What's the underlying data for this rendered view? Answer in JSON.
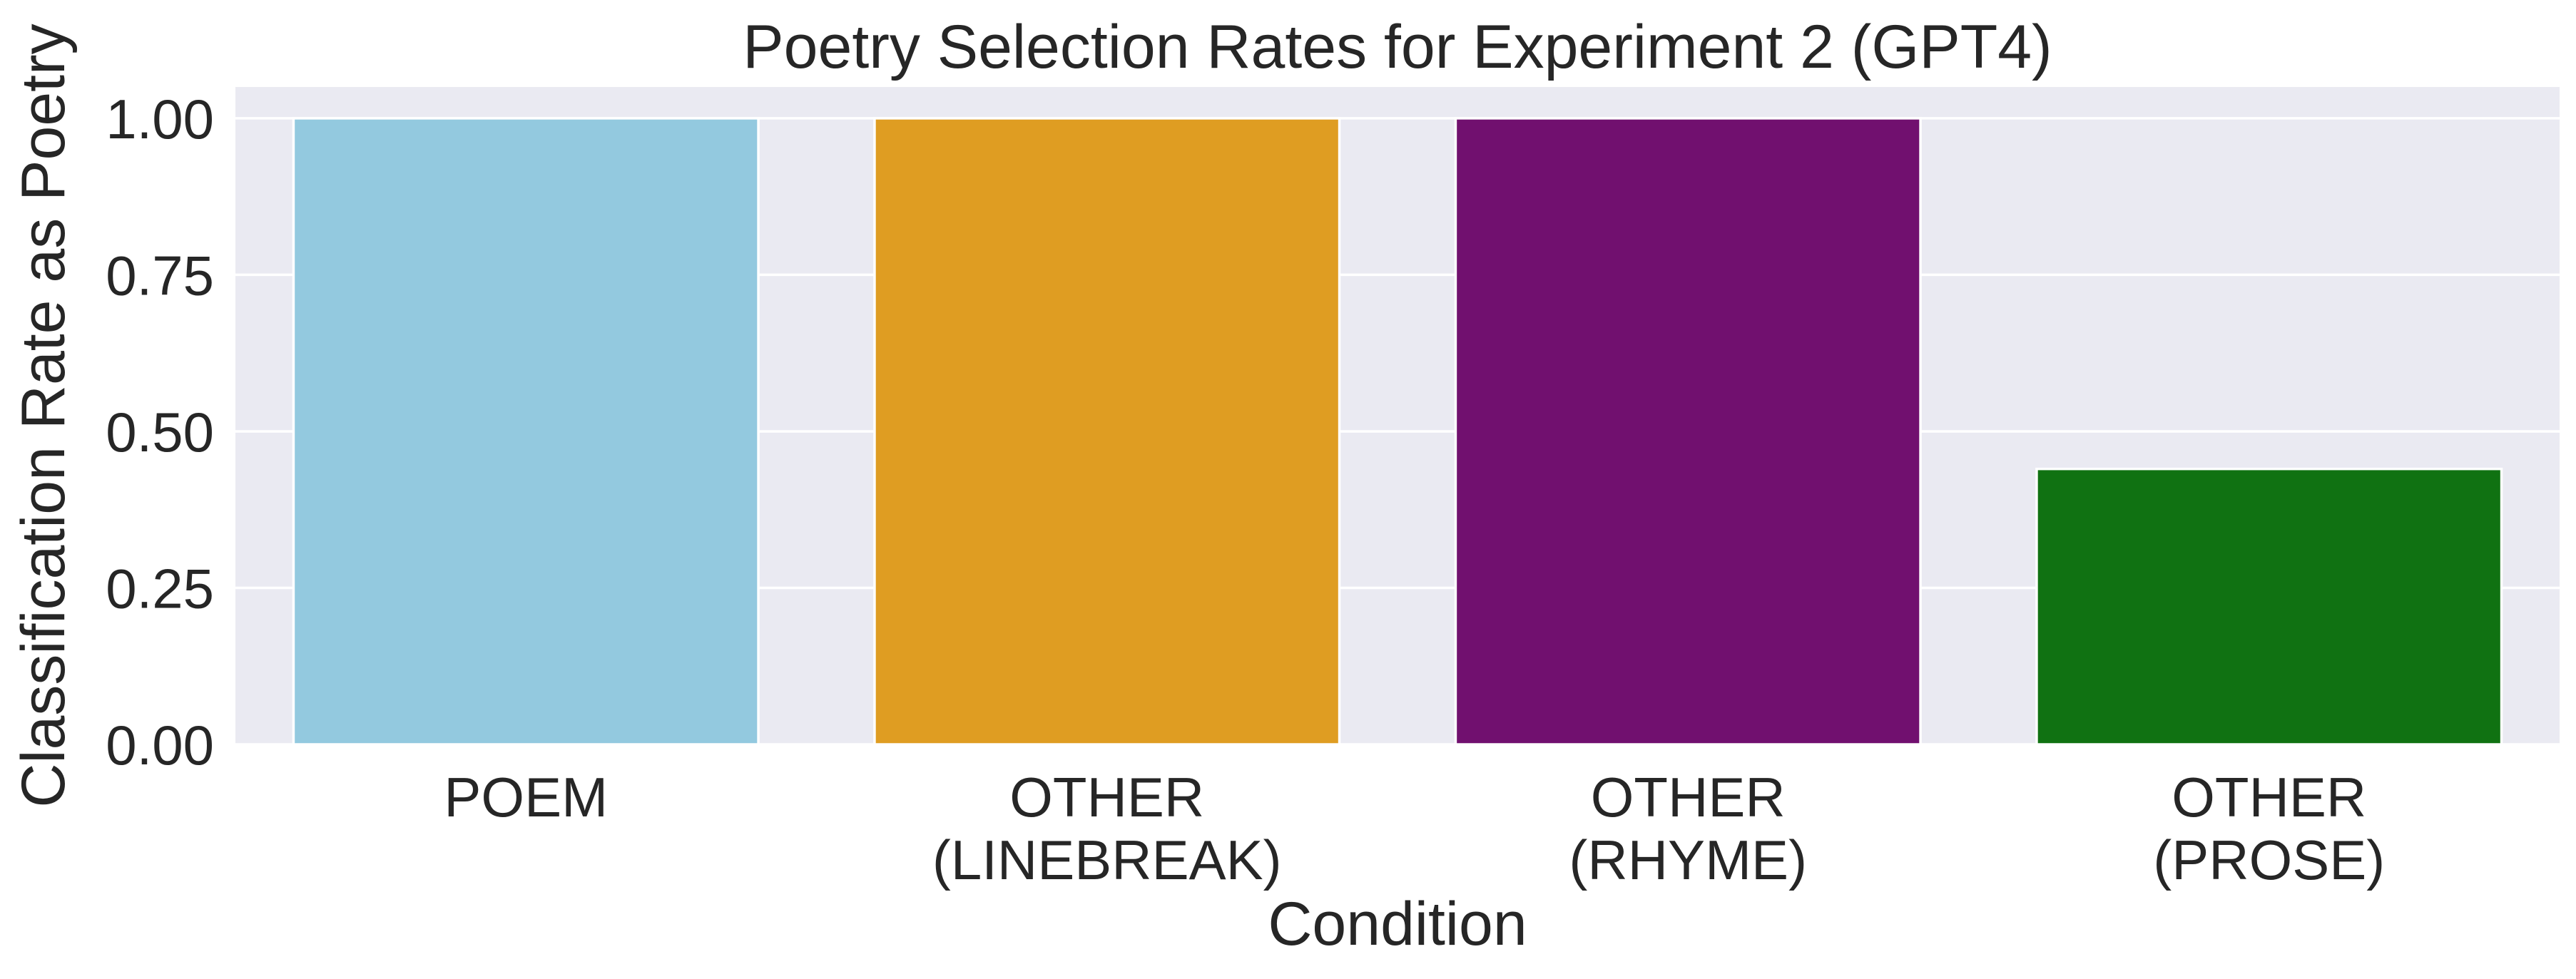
{
  "chart_data": {
    "type": "bar",
    "title": "Poetry Selection Rates for Experiment 2 (GPT4)",
    "xlabel": "Condition",
    "ylabel": "Classification Rate as Poetry",
    "categories": [
      [
        "POEM"
      ],
      [
        "OTHER",
        "(LINEBREAK)"
      ],
      [
        "OTHER",
        "(RHYME)"
      ],
      [
        "OTHER",
        "(PROSE)"
      ]
    ],
    "values": [
      1.0,
      1.0,
      1.0,
      0.44
    ],
    "colors": [
      "#93c9df",
      "#df9d22",
      "#71106f",
      "#107212"
    ],
    "ylim": [
      0,
      1.05
    ],
    "yticks": [
      "0.00",
      "0.25",
      "0.50",
      "0.75",
      "1.00"
    ],
    "ytick_values": [
      0,
      0.25,
      0.5,
      0.75,
      1.0
    ],
    "grid": "horizontal",
    "legend": "none",
    "background": "#eaeaf2"
  }
}
